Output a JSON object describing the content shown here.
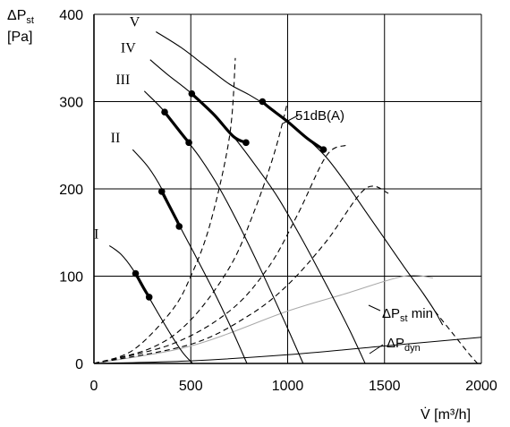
{
  "chart_data": {
    "type": "line",
    "xlabel": "V̇ [m³/h]",
    "ylabel": "ΔPst [Pa]",
    "ylabel_parts": {
      "delta": "ΔP",
      "sub": "st",
      "unit": "[Pa]"
    },
    "xlabel_parts": {
      "symbol": "V̇",
      "unit": " [m³/h]"
    },
    "xlim": [
      0,
      2000
    ],
    "ylim": [
      0,
      400
    ],
    "x_ticks": [
      "0",
      "500",
      "1000",
      "1500",
      "2000"
    ],
    "y_ticks": [
      "0",
      "100",
      "200",
      "300",
      "400"
    ],
    "grid": true,
    "fan_curves": [
      {
        "name": "I",
        "label": "I",
        "points": [
          [
            80,
            135
          ],
          [
            140,
            125
          ],
          [
            200,
            108
          ],
          [
            260,
            85
          ],
          [
            330,
            58
          ],
          [
            400,
            32
          ],
          [
            460,
            12
          ],
          [
            510,
            0
          ]
        ],
        "thick_from": [
          215,
          103
        ],
        "thick_to": [
          285,
          76
        ]
      },
      {
        "name": "II",
        "label": "II",
        "points": [
          [
            200,
            245
          ],
          [
            280,
            225
          ],
          [
            350,
            200
          ],
          [
            430,
            163
          ],
          [
            520,
            125
          ],
          [
            620,
            82
          ],
          [
            710,
            40
          ],
          [
            790,
            0
          ]
        ],
        "thick_from": [
          350,
          197
        ],
        "thick_to": [
          440,
          157
        ]
      },
      {
        "name": "III",
        "label": "III",
        "points": [
          [
            260,
            312
          ],
          [
            350,
            292
          ],
          [
            450,
            264
          ],
          [
            550,
            235
          ],
          [
            650,
            200
          ],
          [
            750,
            158
          ],
          [
            860,
            108
          ],
          [
            980,
            50
          ],
          [
            1080,
            0
          ]
        ],
        "thick_from": [
          365,
          288
        ],
        "thick_to": [
          490,
          253
        ]
      },
      {
        "name": "IV",
        "label": "IV",
        "points": [
          [
            290,
            348
          ],
          [
            380,
            331
          ],
          [
            500,
            310
          ],
          [
            620,
            285
          ],
          [
            720,
            260
          ],
          [
            830,
            228
          ],
          [
            950,
            190
          ],
          [
            1080,
            140
          ],
          [
            1200,
            90
          ],
          [
            1320,
            38
          ],
          [
            1400,
            0
          ]
        ],
        "thick_from": [
          505,
          309
        ],
        "thick_to": [
          785,
          253
        ]
      },
      {
        "name": "V",
        "label": "V",
        "points": [
          [
            320,
            380
          ],
          [
            450,
            362
          ],
          [
            580,
            340
          ],
          [
            700,
            320
          ],
          [
            800,
            308
          ],
          [
            900,
            294
          ],
          [
            1000,
            277
          ],
          [
            1100,
            258
          ],
          [
            1200,
            236
          ],
          [
            1300,
            207
          ],
          [
            1400,
            175
          ],
          [
            1500,
            143
          ],
          [
            1600,
            111
          ],
          [
            1700,
            80
          ],
          [
            1760,
            60
          ],
          [
            1800,
            44
          ]
        ],
        "thick_from": [
          870,
          300
        ],
        "thick_to": [
          1185,
          245
        ],
        "dashed_tail": [
          [
            1760,
            60
          ],
          [
            1850,
            35
          ],
          [
            1940,
            10
          ],
          [
            1980,
            0
          ]
        ]
      }
    ],
    "system_curves": [
      {
        "points": [
          [
            0,
            0
          ],
          [
            200,
            15
          ],
          [
            400,
            60
          ],
          [
            500,
            100
          ],
          [
            600,
            160
          ],
          [
            700,
            260
          ],
          [
            730,
            350
          ]
        ]
      },
      {
        "points": [
          [
            0,
            0
          ],
          [
            300,
            18
          ],
          [
            500,
            50
          ],
          [
            700,
            110
          ],
          [
            820,
            170
          ],
          [
            930,
            240
          ],
          [
            1000,
            300
          ]
        ]
      },
      {
        "points": [
          [
            0,
            0
          ],
          [
            400,
            22
          ],
          [
            700,
            60
          ],
          [
            900,
            110
          ],
          [
            1050,
            170
          ],
          [
            1200,
            238
          ],
          [
            1300,
            250
          ]
        ]
      },
      {
        "points": [
          [
            0,
            0
          ],
          [
            500,
            22
          ],
          [
            800,
            55
          ],
          [
            1000,
            90
          ],
          [
            1200,
            140
          ],
          [
            1400,
            200
          ],
          [
            1520,
            195
          ]
        ]
      }
    ],
    "dpst_min_curve": {
      "label": "ΔPst min",
      "points": [
        [
          0,
          0
        ],
        [
          500,
          20
        ],
        [
          1000,
          60
        ],
        [
          1300,
          80
        ],
        [
          1600,
          100
        ],
        [
          1750,
          98
        ]
      ]
    },
    "dpdyn_curve": {
      "label": "ΔPdyn",
      "points": [
        [
          0,
          0
        ],
        [
          500,
          3
        ],
        [
          1000,
          10
        ],
        [
          1500,
          20
        ],
        [
          2000,
          30
        ]
      ]
    },
    "annotations": {
      "db_label": "51dB(A)",
      "dpst_min": {
        "main": "ΔP",
        "sub": "st",
        "rest": " min"
      },
      "dpdyn": {
        "main": "ΔP",
        "sub": "dyn"
      }
    }
  }
}
